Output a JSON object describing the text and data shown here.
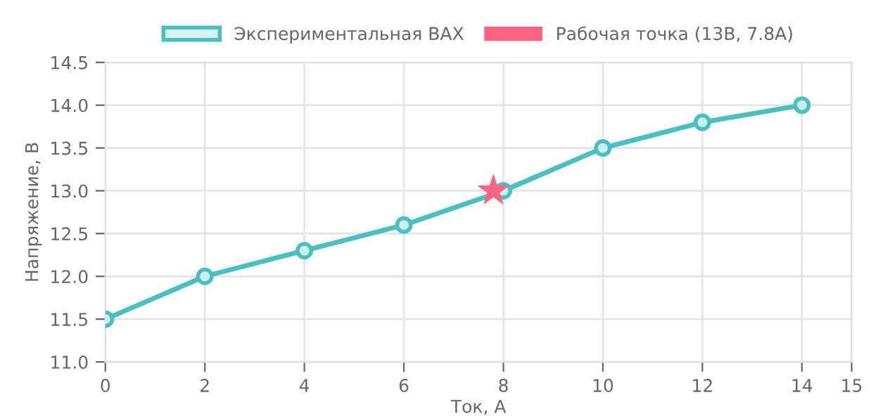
{
  "chart_data": {
    "type": "line",
    "xlabel": "Ток, А",
    "ylabel": "Напряжение, В",
    "series": [
      {
        "name": "Экспериментальная ВАХ",
        "color": "#4bc0c0",
        "marker": "circle",
        "x": [
          0,
          2,
          4,
          6,
          8,
          10,
          12,
          14
        ],
        "values": [
          11.5,
          12.0,
          12.3,
          12.6,
          13.0,
          13.5,
          13.8,
          14.0
        ]
      },
      {
        "name": "Рабочая точка (13В, 7.8А)",
        "color": "#ff6384",
        "type": "scatter",
        "marker": "star",
        "x": [
          7.8
        ],
        "values": [
          13.0
        ]
      }
    ],
    "xlim": [
      0,
      15
    ],
    "xticks": [
      0,
      2,
      4,
      6,
      8,
      10,
      12,
      14,
      15
    ],
    "ylim": [
      11.0,
      14.5
    ],
    "yticks": [
      {
        "value": 11.0,
        "label": "11.0"
      },
      {
        "value": 11.5,
        "label": "11.5"
      },
      {
        "value": 12.0,
        "label": "12.0"
      },
      {
        "value": 12.5,
        "label": "12.5"
      },
      {
        "value": 13.0,
        "label": "13.0"
      },
      {
        "value": 13.5,
        "label": "13.5"
      },
      {
        "value": 14.0,
        "label": "14.0"
      },
      {
        "value": 14.5,
        "label": "14.5"
      }
    ],
    "grid": true,
    "legend": "top"
  }
}
